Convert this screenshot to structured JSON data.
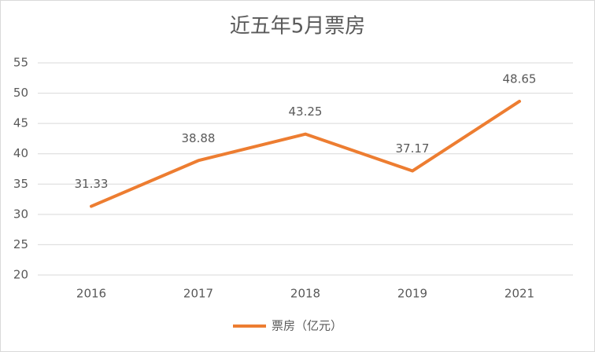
{
  "chart_data": {
    "type": "line",
    "title": "近五年5月票房",
    "categories": [
      "2016",
      "2017",
      "2018",
      "2019",
      "2021"
    ],
    "series": [
      {
        "name": "票房（亿元）",
        "color": "#ed7d31",
        "values": [
          31.33,
          38.88,
          43.25,
          37.17,
          48.65
        ]
      }
    ],
    "ylim": [
      20,
      55
    ],
    "yticks": [
      20,
      25,
      30,
      35,
      40,
      45,
      50,
      55
    ],
    "grid": true,
    "legend": "bottom"
  }
}
